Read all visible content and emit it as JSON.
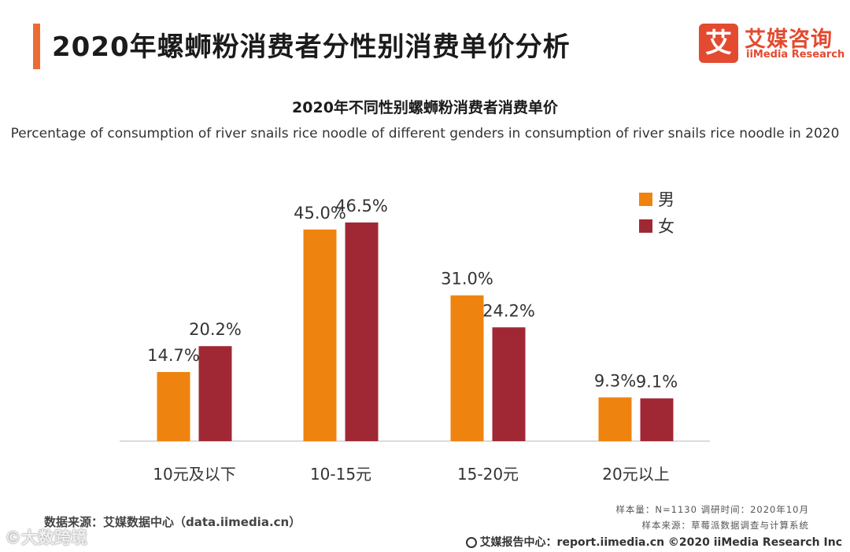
{
  "header": {
    "title": "2020年螺蛳粉消费者分性别消费单价分析",
    "logo_mark": "艾",
    "logo_cn": "艾媒咨询",
    "logo_en": "iiMedia Research"
  },
  "colors": {
    "accent": "#ec6b35",
    "male": "#ef830f",
    "female": "#a02835",
    "brand": "#e34a30"
  },
  "chart_data": {
    "type": "bar",
    "title": "2020年不同性别螺蛳粉消费者消费单价",
    "subtitle": "Percentage of consumption of river snails rice noodle of different genders in consumption of river snails rice noodle in 2020",
    "categories": [
      "10元及以下",
      "10-15元",
      "15-20元",
      "20元以上"
    ],
    "series": [
      {
        "name": "男",
        "values": [
          14.7,
          45.0,
          31.0,
          9.3
        ],
        "labels": [
          "14.7%",
          "45.0%",
          "31.0%",
          "9.3%"
        ],
        "color": "#ef830f"
      },
      {
        "name": "女",
        "values": [
          20.2,
          46.5,
          24.2,
          9.1
        ],
        "labels": [
          "20.2%",
          "46.5%",
          "24.2%",
          "9.1%"
        ],
        "color": "#a02835"
      }
    ],
    "ylim": [
      0,
      50
    ],
    "unit": "%",
    "grid": false,
    "legend": "top-right",
    "xlabel": "",
    "ylabel": ""
  },
  "notes": {
    "sample_size": "样本量：N=1130    调研时间：2020年10月",
    "sample_source": "样本来源：草莓派数据调查与计算系统"
  },
  "source": "数据来源：艾媒数据中心（data.iimedia.cn）",
  "footer": "艾媒报告中心：report.iimedia.cn  ©2020  iiMedia Research  Inc",
  "watermark": "©大数跨境"
}
